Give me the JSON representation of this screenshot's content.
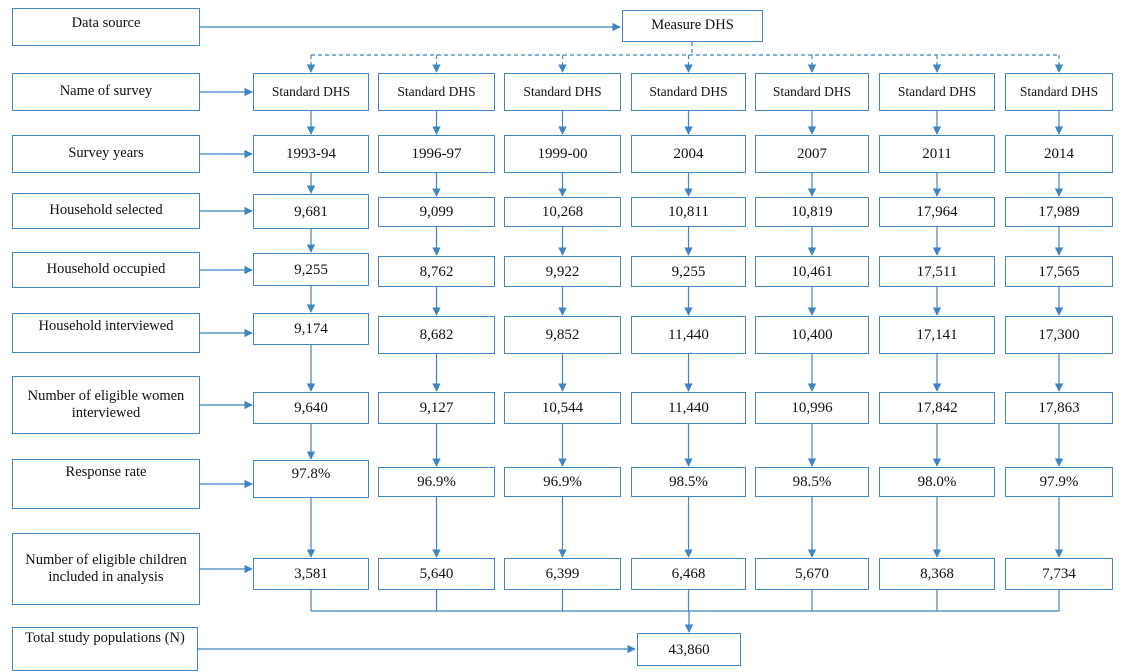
{
  "data_source": {
    "label": "Data source",
    "target": "Measure DHS"
  },
  "rows": [
    {
      "key": "survey",
      "label": "Name of survey",
      "values": [
        "Standard DHS",
        "Standard DHS",
        "Standard DHS",
        "Standard DHS",
        "Standard DHS",
        "Standard DHS",
        "Standard DHS"
      ]
    },
    {
      "key": "years",
      "label": "Survey years",
      "values": [
        "1993-94",
        "1996-97",
        "1999-00",
        "2004",
        "2007",
        "2011",
        "2014"
      ]
    },
    {
      "key": "selected",
      "label": "Household selected",
      "values": [
        "9,681",
        "9,099",
        "10,268",
        "10,811",
        "10,819",
        "17,964",
        "17,989"
      ]
    },
    {
      "key": "occupied",
      "label": "Household occupied",
      "values": [
        "9,255",
        "8,762",
        "9,922",
        "9,255",
        "10,461",
        "17,511",
        "17,565"
      ]
    },
    {
      "key": "interviewed",
      "label": "Household interviewed",
      "values": [
        "9,174",
        "8,682",
        "9,852",
        "11,440",
        "10,400",
        "17,141",
        "17,300"
      ]
    },
    {
      "key": "women",
      "label": "Number of eligible women interviewed",
      "values": [
        "9,640",
        "9,127",
        "10,544",
        "11,440",
        "10,996",
        "17,842",
        "17,863"
      ]
    },
    {
      "key": "response",
      "label": "Response rate",
      "values": [
        "97.8%",
        "96.9%",
        "96.9%",
        "98.5%",
        "98.5%",
        "98.0%",
        "97.9%"
      ]
    },
    {
      "key": "children",
      "label": "Number of eligible children included in analysis",
      "values": [
        "3,581",
        "5,640",
        "6,399",
        "6,468",
        "5,670",
        "8,368",
        "7,734"
      ]
    }
  ],
  "total": {
    "label": "Total study populations (N)",
    "value": "43,860"
  }
}
